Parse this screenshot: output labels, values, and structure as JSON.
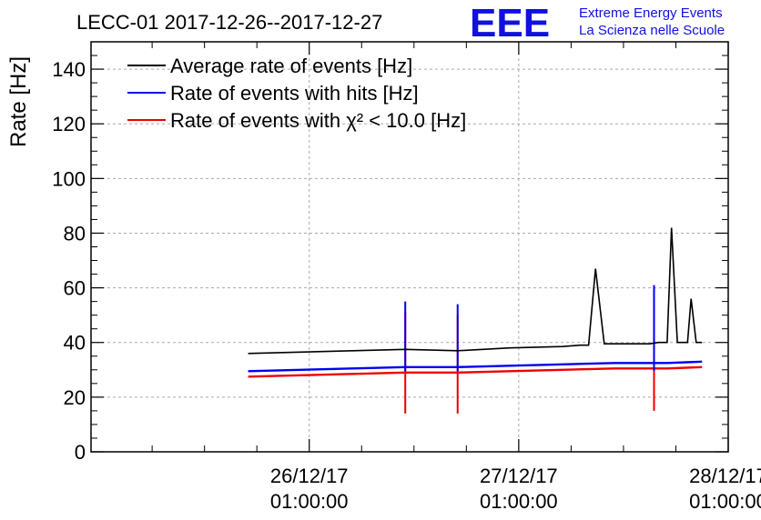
{
  "chart_data": {
    "type": "line",
    "title": "LECC-01 2017-12-26--2017-12-27",
    "ylabel": "Rate [Hz]",
    "xlabel": "",
    "ylim": [
      0,
      150
    ],
    "xlim": [
      "2017-12-25 00:00",
      "2017-12-28 01:00"
    ],
    "yticks": [
      "0",
      "20",
      "40",
      "60",
      "80",
      "100",
      "120",
      "140"
    ],
    "xticks": [
      {
        "date": "26/12/17",
        "time": "01:00:00",
        "at": "2017-12-26 01:00"
      },
      {
        "date": "27/12/17",
        "time": "01:00:00",
        "at": "2017-12-27 01:00"
      },
      {
        "date": "28/12/17",
        "time": "01:00:00",
        "at": "2017-12-28 01:00"
      }
    ],
    "grid": true,
    "legend_position": "top-left",
    "series": [
      {
        "name": "Average rate of events [Hz]",
        "color": "#000000",
        "points": [
          [
            "2017-12-25 18:00",
            36
          ],
          [
            "2017-12-26 00:00",
            36.5
          ],
          [
            "2017-12-26 06:00",
            37
          ],
          [
            "2017-12-26 12:00",
            37.5
          ],
          [
            "2017-12-26 18:00",
            37
          ],
          [
            "2017-12-27 00:00",
            38
          ],
          [
            "2017-12-27 06:00",
            38.5
          ],
          [
            "2017-12-27 08:00",
            39
          ],
          [
            "2017-12-27 09:00",
            39
          ],
          [
            "2017-12-27 09:48",
            67
          ],
          [
            "2017-12-27 10:48",
            39.5
          ],
          [
            "2017-12-27 16:00",
            39.5
          ],
          [
            "2017-12-27 17:00",
            40
          ],
          [
            "2017-12-27 18:00",
            40
          ],
          [
            "2017-12-27 18:30",
            82
          ],
          [
            "2017-12-27 19:10",
            40
          ],
          [
            "2017-12-27 20:20",
            40
          ],
          [
            "2017-12-27 20:45",
            56
          ],
          [
            "2017-12-27 21:20",
            40
          ],
          [
            "2017-12-27 22:00",
            40
          ]
        ]
      },
      {
        "name": "Rate of events with hits [Hz]",
        "color": "#0000ee",
        "points": [
          [
            "2017-12-25 18:00",
            29.5
          ],
          [
            "2017-12-26 00:00",
            30
          ],
          [
            "2017-12-26 06:00",
            30.5
          ],
          [
            "2017-12-26 12:00",
            31
          ],
          [
            "2017-12-26 18:00",
            31
          ],
          [
            "2017-12-27 00:00",
            31.5
          ],
          [
            "2017-12-27 06:00",
            32
          ],
          [
            "2017-12-27 12:00",
            32.5
          ],
          [
            "2017-12-27 18:00",
            32.5
          ],
          [
            "2017-12-27 22:00",
            33
          ]
        ],
        "spikes": [
          [
            "2017-12-26 12:00",
            55
          ],
          [
            "2017-12-26 18:00",
            54
          ],
          [
            "2017-12-27 16:30",
            61
          ]
        ]
      },
      {
        "name": "Rate of events with χ² < 10.0 [Hz]",
        "color": "#ee0000",
        "points": [
          [
            "2017-12-25 18:00",
            27.5
          ],
          [
            "2017-12-26 00:00",
            28
          ],
          [
            "2017-12-26 06:00",
            28.5
          ],
          [
            "2017-12-26 12:00",
            29
          ],
          [
            "2017-12-26 18:00",
            29
          ],
          [
            "2017-12-27 00:00",
            29.5
          ],
          [
            "2017-12-27 06:00",
            30
          ],
          [
            "2017-12-27 12:00",
            30.5
          ],
          [
            "2017-12-27 18:00",
            30.5
          ],
          [
            "2017-12-27 22:00",
            31
          ]
        ],
        "spikes": [
          [
            "2017-12-26 12:00",
            51,
            14
          ],
          [
            "2017-12-26 18:00",
            50,
            14
          ],
          [
            "2017-12-27 16:30",
            57,
            15
          ]
        ]
      }
    ]
  },
  "logo": {
    "mark": "EEE",
    "line1": "Extreme Energy Events",
    "line2": "La Scienza nelle Scuole"
  }
}
